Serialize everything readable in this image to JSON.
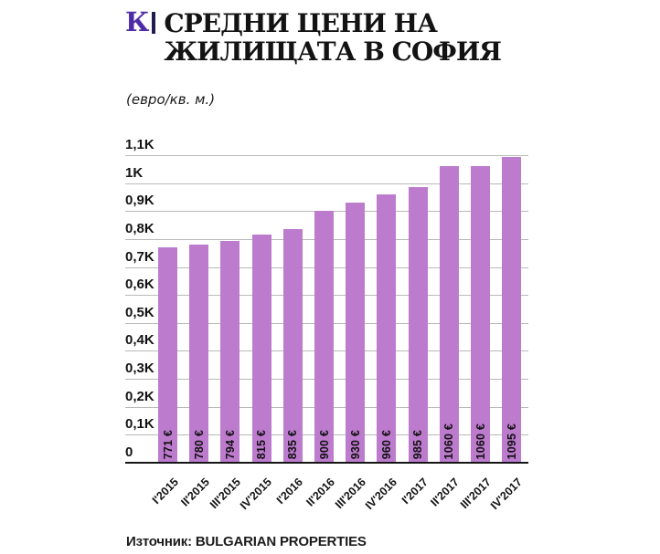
{
  "header": {
    "logo": "К",
    "separator": "|",
    "title_line1": "СРЕДНИ ЦЕНИ НА",
    "title_line2": "ЖИЛИЩАТА В СОФИЯ",
    "subtitle": "(евро/кв. м.)"
  },
  "colors": {
    "logo_purple": "#4e2ca8",
    "separator_dark": "#221d50",
    "bar_fill": "#bd7bce",
    "gridline": "#b9b9b9",
    "baseline": "#151515",
    "text": "#131313"
  },
  "chart_data": {
    "type": "bar",
    "title": "СРЕДНИ ЦЕНИ НА ЖИЛИЩАТА В СОФИЯ",
    "unit_label": "(евро/кв. м.)",
    "categories": [
      "I'2015",
      "II'2015",
      "III'2015",
      "IV'2015",
      "I'2016",
      "II'2016",
      "III'2016",
      "IV'2016",
      "I'2017",
      "II'2017",
      "III'2017",
      "IV'2017"
    ],
    "values": [
      771,
      780,
      794,
      815,
      835,
      900,
      930,
      960,
      985,
      1060,
      1060,
      1095
    ],
    "bar_labels": [
      "771 €",
      "780 €",
      "794 €",
      "815 €",
      "835 €",
      "900 €",
      "930 €",
      "960 €",
      "985 €",
      "1060 €",
      "1060 €",
      "1095 €"
    ],
    "y_ticks": [
      {
        "value": 0,
        "label": "0"
      },
      {
        "value": 100,
        "label": "0,1K"
      },
      {
        "value": 200,
        "label": "0,2K"
      },
      {
        "value": 300,
        "label": "0,3K"
      },
      {
        "value": 400,
        "label": "0,4K"
      },
      {
        "value": 500,
        "label": "0,5K"
      },
      {
        "value": 600,
        "label": "0,6K"
      },
      {
        "value": 700,
        "label": "0,7K"
      },
      {
        "value": 800,
        "label": "0,8K"
      },
      {
        "value": 900,
        "label": "0,9K"
      },
      {
        "value": 1000,
        "label": "1K"
      },
      {
        "value": 1100,
        "label": "1,1K"
      }
    ],
    "ylim": [
      0,
      1100
    ],
    "xlabel": "",
    "ylabel": "",
    "grid": true,
    "legend": "none"
  },
  "footer": {
    "source": "Източник: BULGARIAN PROPERTIES"
  }
}
